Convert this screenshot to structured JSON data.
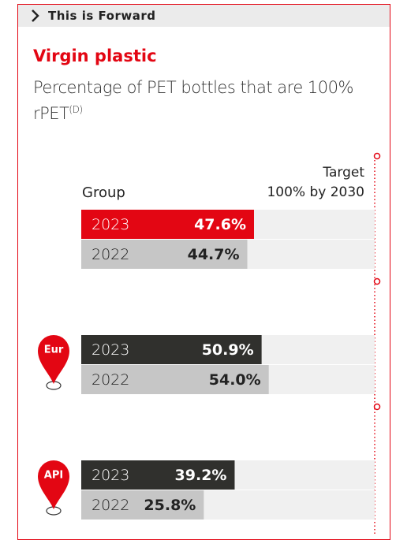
{
  "chart_data": {
    "type": "bar",
    "header": "This is Forward",
    "title": "Virgin plastic",
    "subtitle": "Percentage of PET bottles that are 100% rPET",
    "subtitle_note": "(D)",
    "target_label": "Target",
    "target_note": "100% by 2030",
    "target": 100,
    "xlim": [
      0,
      100
    ],
    "panels": [
      {
        "label": "Group",
        "categories": [
          "2023",
          "2022"
        ],
        "values": [
          47.6,
          44.7
        ],
        "value_labels": [
          "47.6%",
          "44.7%"
        ],
        "colors": [
          "#e30613",
          "#c6c6c6"
        ]
      },
      {
        "label": "Eur",
        "categories": [
          "2023",
          "2022"
        ],
        "values": [
          50.9,
          54.0
        ],
        "value_labels": [
          "50.9%",
          "54.0%"
        ],
        "colors": [
          "#30302d",
          "#c6c6c6"
        ]
      },
      {
        "label": "API",
        "categories": [
          "2023",
          "2022"
        ],
        "values": [
          39.2,
          25.8
        ],
        "value_labels": [
          "39.2%",
          "25.8%"
        ],
        "colors": [
          "#30302d",
          "#c6c6c6"
        ]
      }
    ]
  }
}
